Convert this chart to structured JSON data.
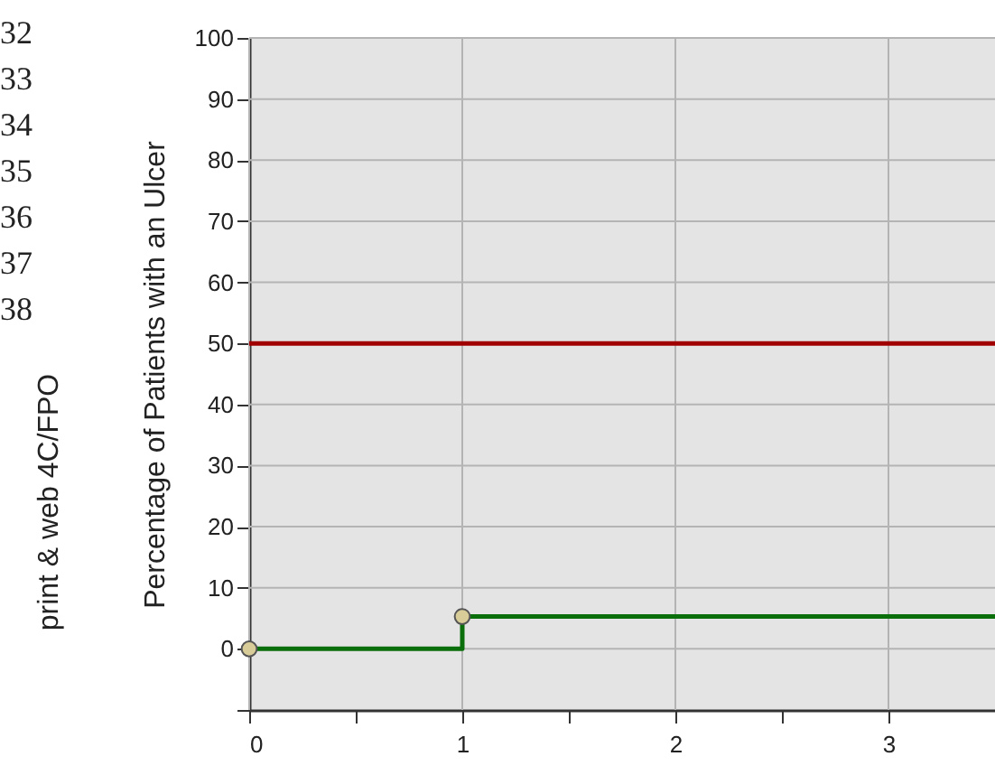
{
  "chart_data": {
    "type": "step",
    "ylabel": "Percentage of Patients with an Ulcer",
    "xlim": [
      0,
      3.5
    ],
    "xticks": [
      0,
      {
        "value": 0.5,
        "label": null
      },
      1,
      {
        "value": 1.5,
        "label": null
      },
      2,
      {
        "value": 2.5,
        "label": null
      },
      3
    ],
    "ylim": [
      -10,
      100
    ],
    "yticks": [
      {
        "value": -10,
        "label": null
      },
      0,
      10,
      20,
      30,
      40,
      50,
      60,
      70,
      80,
      90,
      100
    ],
    "grid": true,
    "series": [
      {
        "color": "#0a6e0a",
        "x": [
          0,
          1,
          3.5
        ],
        "values": [
          0,
          5.3,
          5.3
        ],
        "marker": "none",
        "line_style": "solid"
      },
      {
        "type": "scatter",
        "color": "#d8cc98",
        "x": [
          0,
          1
        ],
        "values": [
          0,
          5.3
        ],
        "marker": "circle"
      }
    ],
    "ref_lines": [
      {
        "axis": "y",
        "value": 50,
        "color": "#a00000",
        "line_style": "solid"
      }
    ],
    "annotations": [
      "32",
      "33",
      "34",
      "35",
      "36",
      "37",
      "38",
      "print & web 4C/FPO"
    ]
  }
}
